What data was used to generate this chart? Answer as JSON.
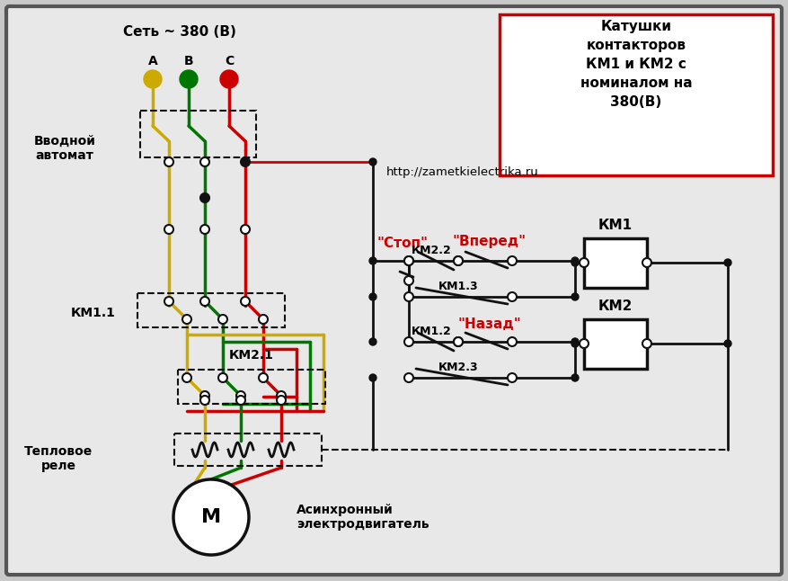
{
  "bg_color": "#c8c8c8",
  "panel_bg": "#e8e8e8",
  "wire_colors": {
    "yellow": "#ccaa00",
    "green": "#007700",
    "red": "#cc0000",
    "black": "#111111"
  },
  "title_text": "Катушки\nконтакторов\nКМ1 и КМ2 с\nноминалом на\n380(В)",
  "url_text": "http://zametkielectrika.ru",
  "network_text": "Сеть ~ 380 (В)",
  "vvodnoy_text": "Вводной\nавтомат",
  "km11_text": "КМ1.1",
  "km21_text": "КМ2.1",
  "teploe_text": "Тепловое\nреле",
  "motor_text": "Асинхронный\nэлектродвигатель",
  "stop_text": "\"Стоп\"",
  "vpered_text": "\"Вперед\"",
  "nazad_text": "\"Назад\"",
  "km1_text": "КМ1",
  "km2_text": "КМ2",
  "km22_text": "КМ2.2",
  "km13_text": "КМ1.3",
  "km12_text": "КМ1.2",
  "km23_text": "КМ2.3",
  "A_text": "A",
  "B_text": "В",
  "C_text": "C"
}
